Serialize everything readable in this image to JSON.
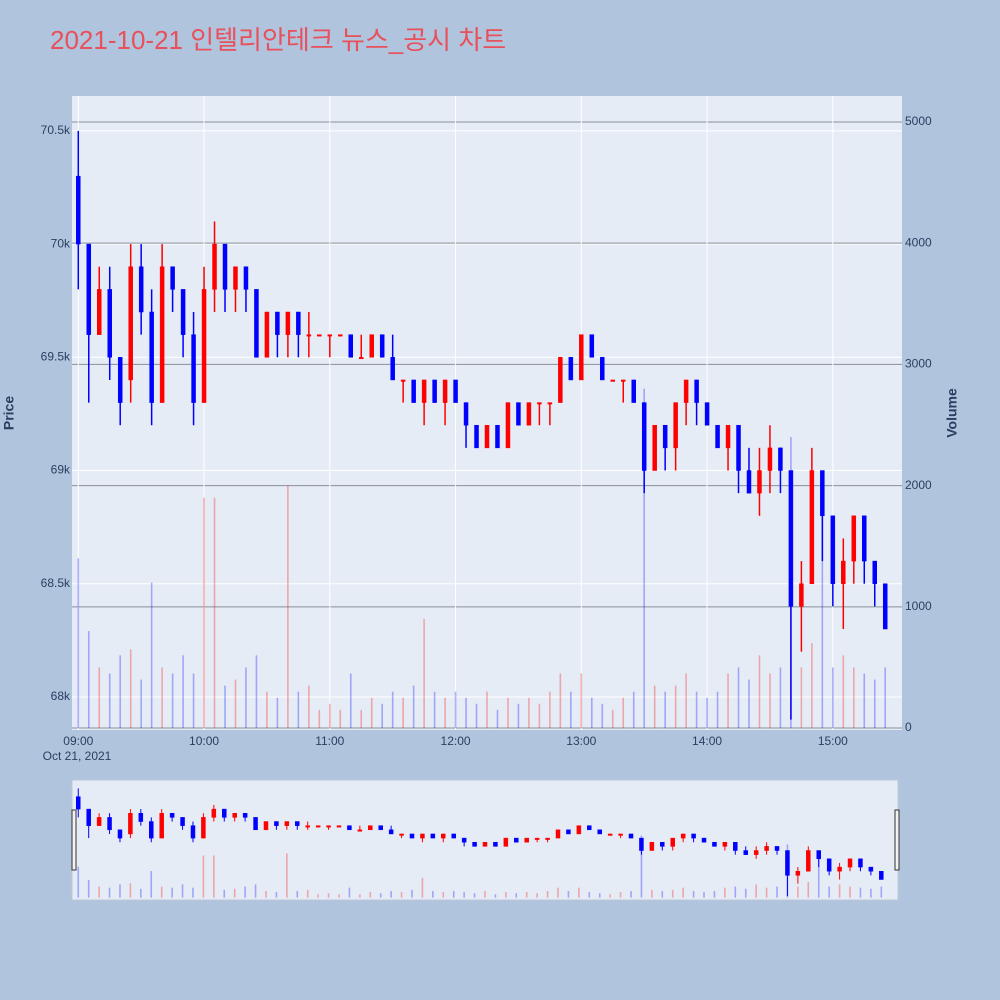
{
  "chart_data": {
    "type": "candlestick",
    "title": "2021-10-21 인텔리안테크 뉴스_공시 차트",
    "ylabel": "Price",
    "y2label": "Volume",
    "x_date_label": "Oct 21, 2021",
    "increasing_color": "#ff0000",
    "decreasing_color": "#0000ff",
    "grid": true,
    "rangeslider": true,
    "xlim": [
      "2021-10-21 08:57",
      "2021-10-21 15:33"
    ],
    "xticks": [
      {
        "value": "2021-10-21 09:00",
        "label": "09:00"
      },
      {
        "value": "2021-10-21 10:00",
        "label": "10:00"
      },
      {
        "value": "2021-10-21 11:00",
        "label": "11:00"
      },
      {
        "value": "2021-10-21 12:00",
        "label": "12:00"
      },
      {
        "value": "2021-10-21 13:00",
        "label": "13:00"
      },
      {
        "value": "2021-10-21 14:00",
        "label": "14:00"
      },
      {
        "value": "2021-10-21 15:00",
        "label": "15:00"
      }
    ],
    "ylim": [
      67854,
      70654
    ],
    "yticks": [
      {
        "value": 68000,
        "label": "68k"
      },
      {
        "value": 68500,
        "label": "68.5k"
      },
      {
        "value": 69000,
        "label": "69k"
      },
      {
        "value": 69500,
        "label": "69.5k"
      },
      {
        "value": 70000,
        "label": "70k"
      },
      {
        "value": 70500,
        "label": "70.5k"
      }
    ],
    "y2lim": [
      -16,
      5214
    ],
    "y2ticks": [
      0,
      1000,
      2000,
      3000,
      4000,
      5000
    ],
    "x": [
      "2021-10-21 09:00",
      "2021-10-21 09:05",
      "2021-10-21 09:10",
      "2021-10-21 09:15",
      "2021-10-21 09:20",
      "2021-10-21 09:25",
      "2021-10-21 09:30",
      "2021-10-21 09:35",
      "2021-10-21 09:40",
      "2021-10-21 09:45",
      "2021-10-21 09:50",
      "2021-10-21 09:55",
      "2021-10-21 10:00",
      "2021-10-21 10:05",
      "2021-10-21 10:10",
      "2021-10-21 10:15",
      "2021-10-21 10:20",
      "2021-10-21 10:25",
      "2021-10-21 10:30",
      "2021-10-21 10:35",
      "2021-10-21 10:40",
      "2021-10-21 10:45",
      "2021-10-21 10:50",
      "2021-10-21 10:55",
      "2021-10-21 11:00",
      "2021-10-21 11:05",
      "2021-10-21 11:10",
      "2021-10-21 11:15",
      "2021-10-21 11:20",
      "2021-10-21 11:25",
      "2021-10-21 11:30",
      "2021-10-21 11:35",
      "2021-10-21 11:40",
      "2021-10-21 11:45",
      "2021-10-21 11:50",
      "2021-10-21 11:55",
      "2021-10-21 12:00",
      "2021-10-21 12:05",
      "2021-10-21 12:10",
      "2021-10-21 12:15",
      "2021-10-21 12:20",
      "2021-10-21 12:25",
      "2021-10-21 12:30",
      "2021-10-21 12:35",
      "2021-10-21 12:40",
      "2021-10-21 12:45",
      "2021-10-21 12:50",
      "2021-10-21 12:55",
      "2021-10-21 13:00",
      "2021-10-21 13:05",
      "2021-10-21 13:10",
      "2021-10-21 13:15",
      "2021-10-21 13:20",
      "2021-10-21 13:25",
      "2021-10-21 13:30",
      "2021-10-21 13:35",
      "2021-10-21 13:40",
      "2021-10-21 13:45",
      "2021-10-21 13:50",
      "2021-10-21 13:55",
      "2021-10-21 14:00",
      "2021-10-21 14:05",
      "2021-10-21 14:10",
      "2021-10-21 14:15",
      "2021-10-21 14:20",
      "2021-10-21 14:25",
      "2021-10-21 14:30",
      "2021-10-21 14:35",
      "2021-10-21 14:40",
      "2021-10-21 14:45",
      "2021-10-21 14:50",
      "2021-10-21 14:55",
      "2021-10-21 15:00",
      "2021-10-21 15:05",
      "2021-10-21 15:10",
      "2021-10-21 15:15",
      "2021-10-21 15:20",
      "2021-10-21 15:25"
    ],
    "open": [
      70300,
      70000,
      69600,
      69800,
      69500,
      69400,
      69900,
      69700,
      69300,
      69900,
      69800,
      69600,
      69300,
      69800,
      70000,
      69800,
      69900,
      69800,
      69500,
      69700,
      69600,
      69700,
      69600,
      69600,
      69600,
      69600,
      69600,
      69500,
      69500,
      69600,
      69500,
      69400,
      69400,
      69300,
      69400,
      69300,
      69400,
      69300,
      69200,
      69100,
      69200,
      69100,
      69300,
      69200,
      69300,
      69300,
      69300,
      69500,
      69400,
      69600,
      69500,
      69400,
      69400,
      69400,
      69300,
      69000,
      69200,
      69100,
      69300,
      69400,
      69300,
      69200,
      69100,
      69200,
      69000,
      68900,
      69000,
      69100,
      69000,
      68400,
      68500,
      69000,
      68800,
      68500,
      68600,
      68800,
      68600,
      68500
    ],
    "high": [
      70500,
      70000,
      69900,
      69900,
      69500,
      70000,
      70000,
      69800,
      70000,
      69900,
      69800,
      69700,
      69900,
      70100,
      70000,
      69900,
      69900,
      69800,
      69700,
      69700,
      69700,
      69700,
      69700,
      69600,
      69600,
      69600,
      69600,
      69600,
      69600,
      69600,
      69600,
      69400,
      69400,
      69400,
      69400,
      69400,
      69400,
      69300,
      69200,
      69200,
      69200,
      69300,
      69300,
      69300,
      69300,
      69300,
      69500,
      69500,
      69600,
      69600,
      69500,
      69400,
      69400,
      69400,
      69300,
      69200,
      69200,
      69300,
      69400,
      69400,
      69300,
      69200,
      69200,
      69200,
      69100,
      69100,
      69200,
      69100,
      69000,
      68600,
      69100,
      69000,
      68800,
      68700,
      68800,
      68800,
      68600,
      68500
    ],
    "low": [
      69800,
      69300,
      69600,
      69400,
      69200,
      69300,
      69600,
      69200,
      69300,
      69700,
      69500,
      69200,
      69300,
      69700,
      69700,
      69700,
      69700,
      69500,
      69500,
      69500,
      69500,
      69500,
      69500,
      69600,
      69500,
      69600,
      69500,
      69500,
      69500,
      69500,
      69400,
      69300,
      69300,
      69200,
      69300,
      69200,
      69300,
      69100,
      69100,
      69100,
      69100,
      69100,
      69200,
      69200,
      69200,
      69200,
      69300,
      69400,
      69400,
      69500,
      69400,
      69400,
      69300,
      69300,
      68900,
      69000,
      69000,
      69000,
      69200,
      69200,
      69200,
      69100,
      69000,
      68900,
      68900,
      68800,
      68900,
      68900,
      67900,
      68200,
      68500,
      68600,
      68400,
      68300,
      68500,
      68500,
      68400,
      68300
    ],
    "close": [
      70000,
      69600,
      69800,
      69500,
      69300,
      69900,
      69700,
      69300,
      69900,
      69800,
      69600,
      69300,
      69800,
      70000,
      69800,
      69900,
      69800,
      69500,
      69700,
      69600,
      69700,
      69600,
      69600,
      69600,
      69600,
      69600,
      69500,
      69500,
      69600,
      69500,
      69400,
      69400,
      69300,
      69400,
      69300,
      69400,
      69300,
      69200,
      69100,
      69200,
      69100,
      69300,
      69200,
      69300,
      69300,
      69300,
      69500,
      69400,
      69600,
      69500,
      69400,
      69400,
      69400,
      69300,
      69000,
      69200,
      69100,
      69300,
      69400,
      69300,
      69200,
      69100,
      69200,
      69000,
      68900,
      69000,
      69100,
      69000,
      68400,
      68500,
      69000,
      68800,
      68500,
      68600,
      68800,
      68600,
      68500,
      68300
    ],
    "volume": [
      1400,
      800,
      500,
      450,
      600,
      650,
      400,
      1200,
      500,
      450,
      600,
      450,
      1900,
      1900,
      350,
      400,
      500,
      600,
      300,
      250,
      2000,
      300,
      350,
      150,
      200,
      150,
      450,
      150,
      250,
      200,
      300,
      250,
      350,
      900,
      300,
      250,
      300,
      250,
      200,
      300,
      150,
      250,
      200,
      250,
      200,
      300,
      450,
      300,
      450,
      250,
      200,
      150,
      250,
      300,
      2800,
      350,
      300,
      350,
      450,
      300,
      250,
      300,
      450,
      500,
      400,
      600,
      450,
      500,
      2400,
      500,
      700,
      1900,
      500,
      600,
      500,
      450,
      400,
      500
    ]
  }
}
